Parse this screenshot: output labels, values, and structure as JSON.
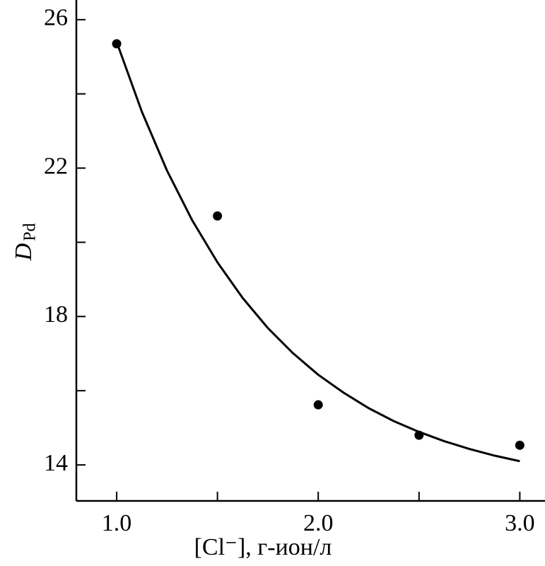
{
  "chart_data": {
    "type": "scatter",
    "xlabel": "[Cl⁻], г-ион/л",
    "ylabel": "D",
    "ylabel_sub": "Pd",
    "xlim": [
      0.8,
      3.125
    ],
    "ylim": [
      13.03,
      26.53
    ],
    "xticks": [
      {
        "value": 1,
        "label": "1.0"
      },
      {
        "value": 2,
        "label": "2.0"
      },
      {
        "value": 3,
        "label": "3.0"
      }
    ],
    "xminor": [
      1.5,
      2.5
    ],
    "yticks": [
      14,
      18,
      22,
      26
    ],
    "yminor": [
      16,
      20,
      24
    ],
    "color": "#000000",
    "points": {
      "x": [
        1.0,
        1.5,
        2.0,
        2.5,
        3.0
      ],
      "y": [
        25.35,
        20.71,
        15.62,
        14.8,
        14.53
      ]
    },
    "fit": {
      "x": [
        1.0,
        1.125,
        1.25,
        1.375,
        1.5,
        1.625,
        1.75,
        1.875,
        2.0,
        2.125,
        2.25,
        2.375,
        2.5,
        2.625,
        2.75,
        2.875,
        3.0
      ],
      "y": [
        25.4,
        23.52,
        21.93,
        20.59,
        19.46,
        18.5,
        17.69,
        17.01,
        16.43,
        15.95,
        15.53,
        15.18,
        14.89,
        14.64,
        14.43,
        14.25,
        14.1
      ]
    }
  }
}
